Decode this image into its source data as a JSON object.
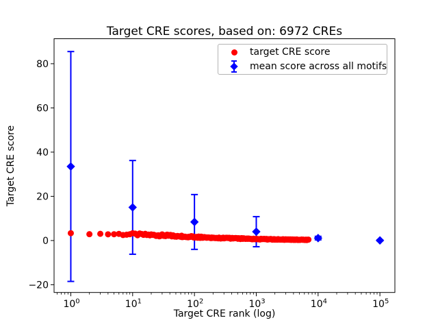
{
  "chart_data": {
    "type": "scatter",
    "title": "Target CRE scores, based on: 6972 CREs",
    "xlabel": "Target CRE rank (log)",
    "ylabel": "Target CRE score",
    "x_scale": "log",
    "xlim": [
      0.536,
      174600
    ],
    "ylim": [
      -23.5,
      91.3
    ],
    "grid": false,
    "x_ticks": [
      {
        "value": 1,
        "base": "10",
        "exp": "0"
      },
      {
        "value": 10,
        "base": "10",
        "exp": "1"
      },
      {
        "value": 100,
        "base": "10",
        "exp": "2"
      },
      {
        "value": 1000,
        "base": "10",
        "exp": "3"
      },
      {
        "value": 10000,
        "base": "10",
        "exp": "4"
      },
      {
        "value": 100000,
        "base": "10",
        "exp": "5"
      }
    ],
    "y_ticks": [
      {
        "value": -20,
        "label": "−20"
      },
      {
        "value": 0,
        "label": "0"
      },
      {
        "value": 20,
        "label": "20"
      },
      {
        "value": 40,
        "label": "40"
      },
      {
        "value": 60,
        "label": "60"
      },
      {
        "value": 80,
        "label": "80"
      }
    ],
    "colors": {
      "target_series": "#ff0000",
      "mean_series": "#0000ff",
      "spine": "#000000",
      "legend_border": "#b3b3b3",
      "background": "#ffffff"
    },
    "legend": {
      "position": "upper right",
      "entries": [
        "target CRE score",
        "mean score across all motifs"
      ]
    },
    "series": [
      {
        "name": "target CRE score",
        "marker": "circle",
        "color": "#ff0000",
        "count": 6972,
        "x_range": [
          1,
          6972
        ],
        "trend_anchors": [
          [
            1,
            3.2
          ],
          [
            2,
            3.0
          ],
          [
            3,
            3.02
          ],
          [
            4,
            2.95
          ],
          [
            5,
            2.9
          ],
          [
            7,
            2.85
          ],
          [
            10,
            2.8
          ],
          [
            15,
            2.62
          ],
          [
            20,
            2.5
          ],
          [
            30,
            2.33
          ],
          [
            50,
            2.05
          ],
          [
            70,
            1.87
          ],
          [
            100,
            1.62
          ],
          [
            150,
            1.42
          ],
          [
            200,
            1.28
          ],
          [
            300,
            1.1
          ],
          [
            500,
            0.92
          ],
          [
            700,
            0.82
          ],
          [
            1000,
            0.68
          ],
          [
            1500,
            0.58
          ],
          [
            2000,
            0.52
          ],
          [
            3000,
            0.44
          ],
          [
            5000,
            0.36
          ],
          [
            6972,
            0.3
          ]
        ]
      },
      {
        "name": "mean score across all motifs",
        "marker": "diamond",
        "color": "#0000ff",
        "points": [
          {
            "x": 1,
            "y": 33.5,
            "err": 52.0
          },
          {
            "x": 10,
            "y": 15.0,
            "err": 21.2
          },
          {
            "x": 100,
            "y": 8.4,
            "err": 12.4
          },
          {
            "x": 1000,
            "y": 4.0,
            "err": 6.8
          },
          {
            "x": 10000,
            "y": 1.1,
            "err": 0.8
          },
          {
            "x": 100000,
            "y": 0.05,
            "err": 0.2
          }
        ]
      }
    ]
  }
}
